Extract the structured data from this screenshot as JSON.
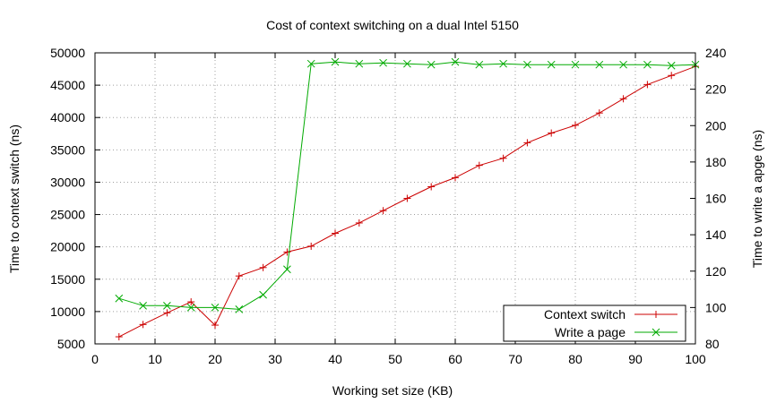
{
  "chart_data": {
    "type": "line",
    "title": "Cost of context switching on a dual Intel 5150",
    "xlabel": "Working set size (KB)",
    "ylabel": "Time to context switch (ns)",
    "y2label": "Time to write a apge (ns)",
    "xlim": [
      0,
      100
    ],
    "ylim": [
      5000,
      50000
    ],
    "y2lim": [
      80,
      240
    ],
    "xticks": [
      0,
      10,
      20,
      30,
      40,
      50,
      60,
      70,
      80,
      90,
      100
    ],
    "yticks": [
      5000,
      10000,
      15000,
      20000,
      25000,
      30000,
      35000,
      40000,
      45000,
      50000
    ],
    "y2ticks": [
      80,
      100,
      120,
      140,
      160,
      180,
      200,
      220,
      240
    ],
    "grid": true,
    "legend": "bottom-right",
    "series": [
      {
        "name": "Context switch",
        "axis": "left",
        "color": "#cc0000",
        "marker": "plus",
        "x": [
          4,
          8,
          12,
          16,
          20,
          24,
          28,
          32,
          36,
          40,
          44,
          48,
          52,
          56,
          60,
          64,
          68,
          72,
          76,
          80,
          84,
          88,
          92,
          96,
          100
        ],
        "y": [
          6100,
          8000,
          9800,
          11500,
          7900,
          15500,
          16800,
          19200,
          20100,
          22100,
          23700,
          25600,
          27500,
          29300,
          30700,
          32600,
          33700,
          36100,
          37600,
          38800,
          40700,
          42900,
          45100,
          46500,
          47900
        ]
      },
      {
        "name": "Write a page",
        "axis": "right",
        "color": "#00aa00",
        "marker": "cross",
        "x": [
          4,
          8,
          12,
          16,
          20,
          24,
          28,
          32,
          36,
          40,
          44,
          48,
          52,
          56,
          60,
          64,
          68,
          72,
          76,
          80,
          84,
          88,
          92,
          96,
          100
        ],
        "y": [
          105,
          101,
          101,
          100,
          100,
          99,
          107,
          121,
          234,
          235,
          234,
          234.5,
          234,
          233.5,
          235,
          233.5,
          234,
          233.5,
          233.5,
          233.5,
          233.5,
          233.5,
          233.5,
          233,
          233.5
        ]
      }
    ]
  }
}
